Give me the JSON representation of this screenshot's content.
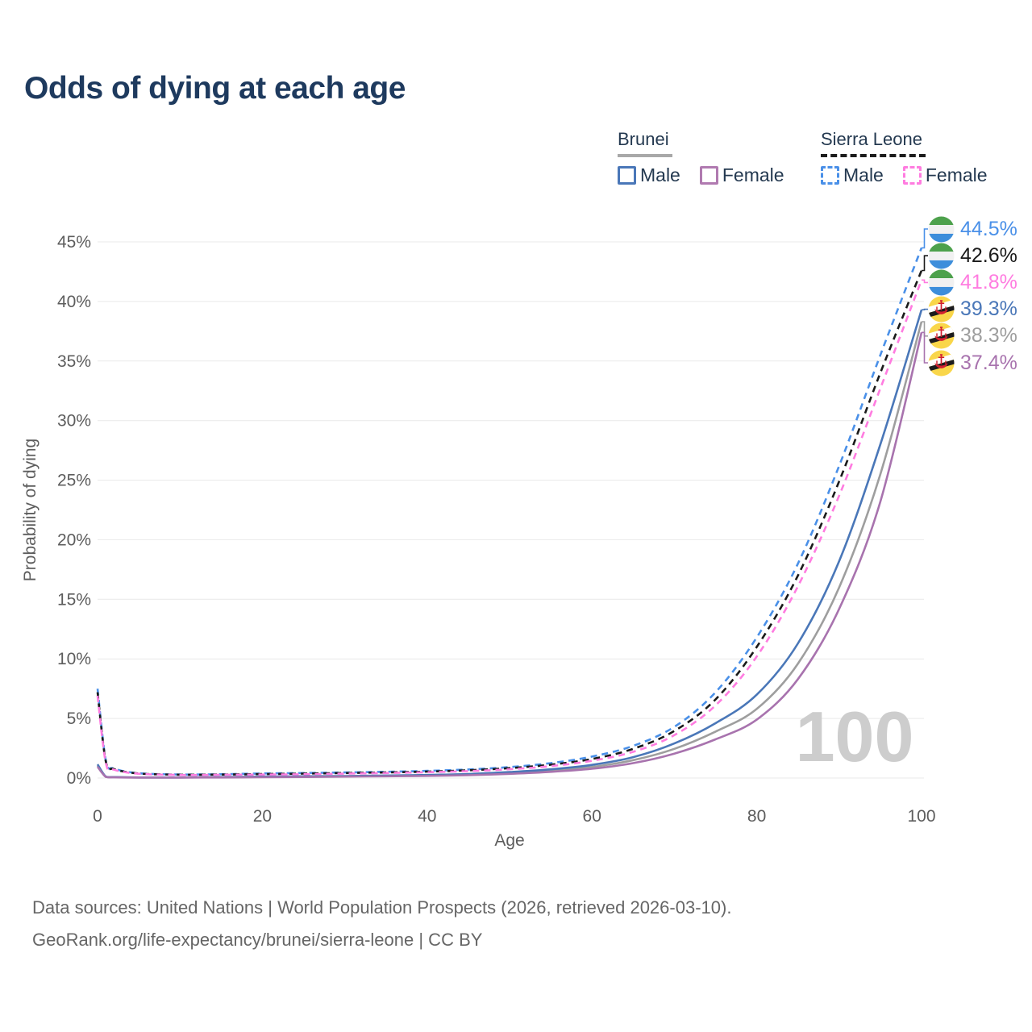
{
  "title": "Odds of dying at each age",
  "legend": {
    "groups": [
      {
        "country": "Brunei",
        "line_style": "solid",
        "underline_color": "#a8a8a8",
        "items": [
          {
            "label": "Male",
            "color": "#4a77b8"
          },
          {
            "label": "Female",
            "color": "#b07ab0"
          }
        ]
      },
      {
        "country": "Sierra Leone",
        "line_style": "dashed",
        "underline_color": "#1c1c1c",
        "items": [
          {
            "label": "Male",
            "color": "#4a90e8"
          },
          {
            "label": "Female",
            "color": "#ff7ce0"
          }
        ]
      }
    ]
  },
  "watermark": "100",
  "footer": {
    "line1": "Data sources: United Nations | World Population Prospects (2026, retrieved 2026-03-10).",
    "line2": "GeoRank.org/life-expectancy/brunei/sierra-leone | CC BY"
  },
  "chart_data": {
    "type": "line",
    "title": "Odds of dying at each age",
    "xlabel": "Age",
    "ylabel": "Probability of dying",
    "xlim": [
      0,
      100
    ],
    "ylim_pct": [
      0,
      45
    ],
    "x_ticks": [
      0,
      20,
      40,
      60,
      80,
      100
    ],
    "y_tick_values": [
      0,
      5,
      10,
      15,
      20,
      25,
      30,
      35,
      40,
      45
    ],
    "y_tick_labels": [
      "0%",
      "5%",
      "10%",
      "15%",
      "20%",
      "25%",
      "30%",
      "35%",
      "40%",
      "45%"
    ],
    "grid": "horizontal",
    "legend_position": "top-right",
    "ages": [
      0,
      1,
      2,
      5,
      10,
      15,
      20,
      25,
      30,
      35,
      40,
      45,
      50,
      55,
      60,
      65,
      70,
      75,
      80,
      85,
      90,
      95,
      100
    ],
    "series": [
      {
        "name": "Sierra Leone Male",
        "color": "#4a90e8",
        "dashed": true,
        "end_label": "44.5%",
        "flag": "sierra-leone",
        "values_pct": [
          7.5,
          1.5,
          0.8,
          0.4,
          0.3,
          0.32,
          0.38,
          0.42,
          0.47,
          0.52,
          0.6,
          0.72,
          0.92,
          1.25,
          1.8,
          2.7,
          4.3,
          7.2,
          11.8,
          18.0,
          26.2,
          35.5,
          44.5
        ]
      },
      {
        "name": "Sierra Leone (both sexes)",
        "color": "#1a1a1a",
        "dashed": true,
        "end_label": "42.6%",
        "flag": "sierra-leone",
        "values_pct": [
          7.2,
          1.4,
          0.75,
          0.38,
          0.28,
          0.29,
          0.33,
          0.37,
          0.42,
          0.47,
          0.54,
          0.65,
          0.83,
          1.12,
          1.6,
          2.45,
          3.95,
          6.6,
          11.0,
          17.0,
          24.9,
          34.0,
          42.6
        ]
      },
      {
        "name": "Sierra Leone Female",
        "color": "#ff7ce0",
        "dashed": true,
        "end_label": "41.8%",
        "flag": "sierra-leone",
        "values_pct": [
          6.9,
          1.3,
          0.7,
          0.36,
          0.26,
          0.27,
          0.29,
          0.32,
          0.37,
          0.42,
          0.49,
          0.58,
          0.74,
          1.0,
          1.45,
          2.2,
          3.6,
          6.1,
          10.2,
          16.1,
          23.7,
          32.7,
          41.8
        ]
      },
      {
        "name": "Brunei Male",
        "color": "#4a77b8",
        "dashed": false,
        "end_label": "39.3%",
        "flag": "brunei",
        "values_pct": [
          1.15,
          0.12,
          0.08,
          0.05,
          0.05,
          0.08,
          0.12,
          0.15,
          0.17,
          0.21,
          0.26,
          0.34,
          0.5,
          0.73,
          1.1,
          1.75,
          2.9,
          4.6,
          7.0,
          11.3,
          18.2,
          28.0,
          39.3
        ]
      },
      {
        "name": "Brunei (both sexes)",
        "color": "#9e9e9e",
        "dashed": false,
        "end_label": "38.3%",
        "flag": "brunei",
        "values_pct": [
          1.05,
          0.11,
          0.07,
          0.045,
          0.045,
          0.065,
          0.1,
          0.12,
          0.14,
          0.18,
          0.22,
          0.29,
          0.42,
          0.62,
          0.93,
          1.5,
          2.45,
          3.9,
          5.8,
          9.6,
          16.0,
          25.5,
          38.3
        ]
      },
      {
        "name": "Brunei Female",
        "color": "#a873ae",
        "dashed": false,
        "end_label": "37.4%",
        "flag": "brunei",
        "values_pct": [
          0.95,
          0.1,
          0.06,
          0.04,
          0.04,
          0.05,
          0.07,
          0.09,
          0.12,
          0.15,
          0.18,
          0.24,
          0.35,
          0.52,
          0.78,
          1.25,
          2.05,
          3.25,
          4.9,
          8.3,
          14.2,
          23.2,
          37.4
        ]
      }
    ]
  }
}
